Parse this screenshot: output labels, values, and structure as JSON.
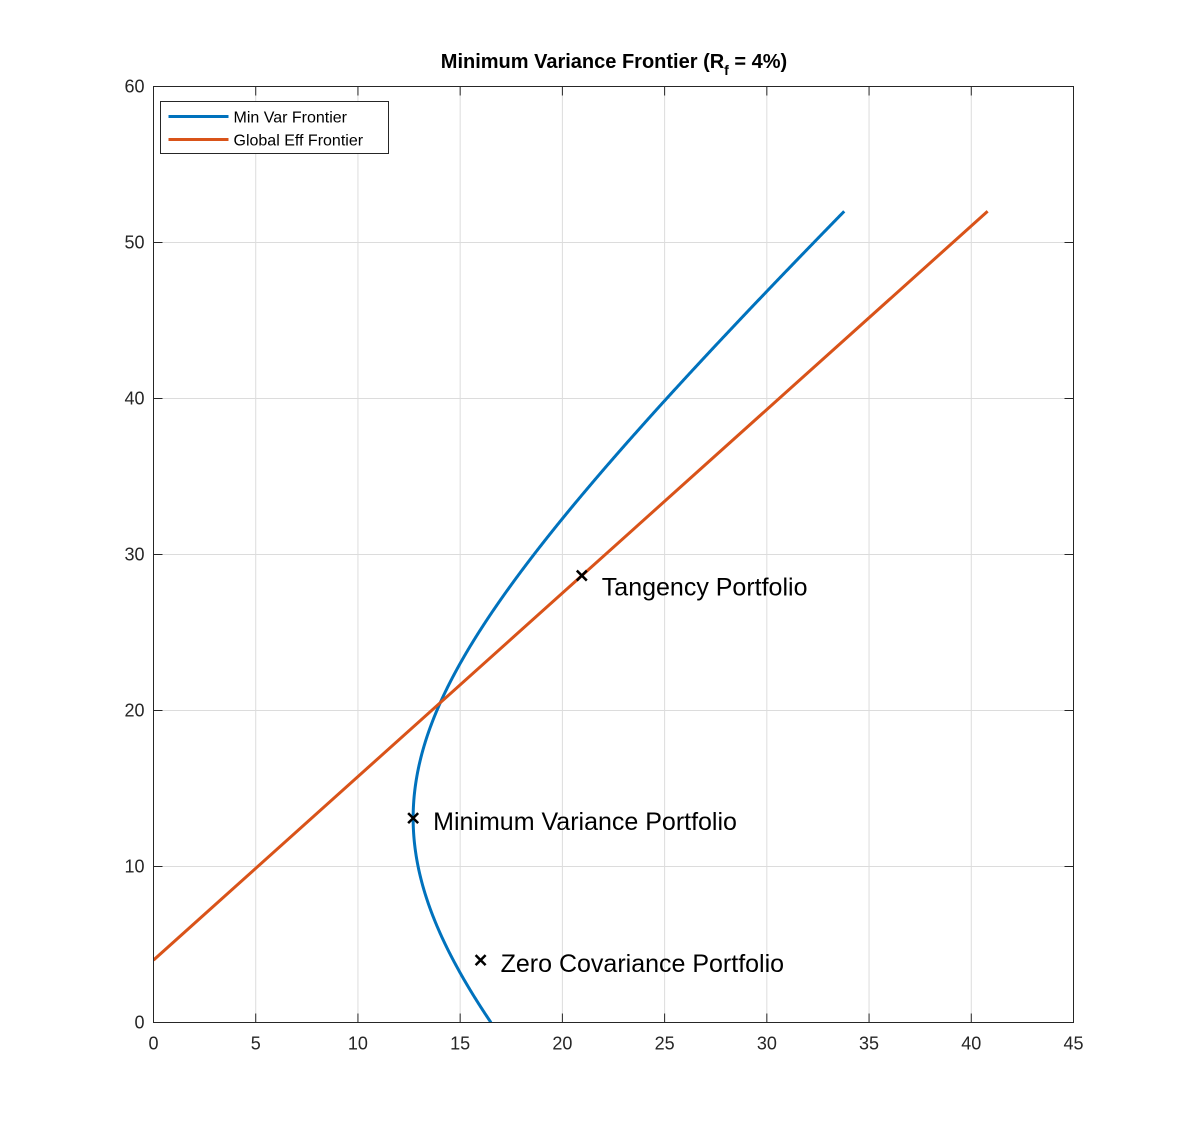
{
  "chart_data": {
    "type": "line",
    "title": {
      "prefix": "Minimum Variance Frontier (R",
      "subscript": "f",
      "suffix": " = 4%)"
    },
    "xlabel": "",
    "ylabel": "",
    "xlim": [
      0,
      45
    ],
    "ylim": [
      0,
      60
    ],
    "xticks": [
      0,
      5,
      10,
      15,
      20,
      25,
      30,
      35,
      40,
      45
    ],
    "yticks": [
      0,
      10,
      20,
      30,
      40,
      50,
      60
    ],
    "grid": true,
    "legend": {
      "position": "top-left"
    },
    "series": [
      {
        "name": "Min Var Frontier",
        "color": "#0072BD",
        "curve": "hyperbola",
        "params": {
          "sigma_min": 12.7,
          "mu_min": 13.1,
          "slope": 1.2425
        },
        "y_range": [
          0,
          52
        ]
      },
      {
        "name": "Global Eff Frontier",
        "color": "#D95319",
        "x": [
          0,
          40.8
        ],
        "y": [
          4,
          52
        ]
      }
    ],
    "points": [
      {
        "label": "Tangency Portfolio",
        "x": 20.95,
        "y": 28.65
      },
      {
        "label": "Minimum Variance Portfolio",
        "x": 12.7,
        "y": 13.1
      },
      {
        "label": "Zero Covariance Portfolio",
        "x": 16.0,
        "y": 4.0
      }
    ],
    "marker_color": "#000000"
  }
}
